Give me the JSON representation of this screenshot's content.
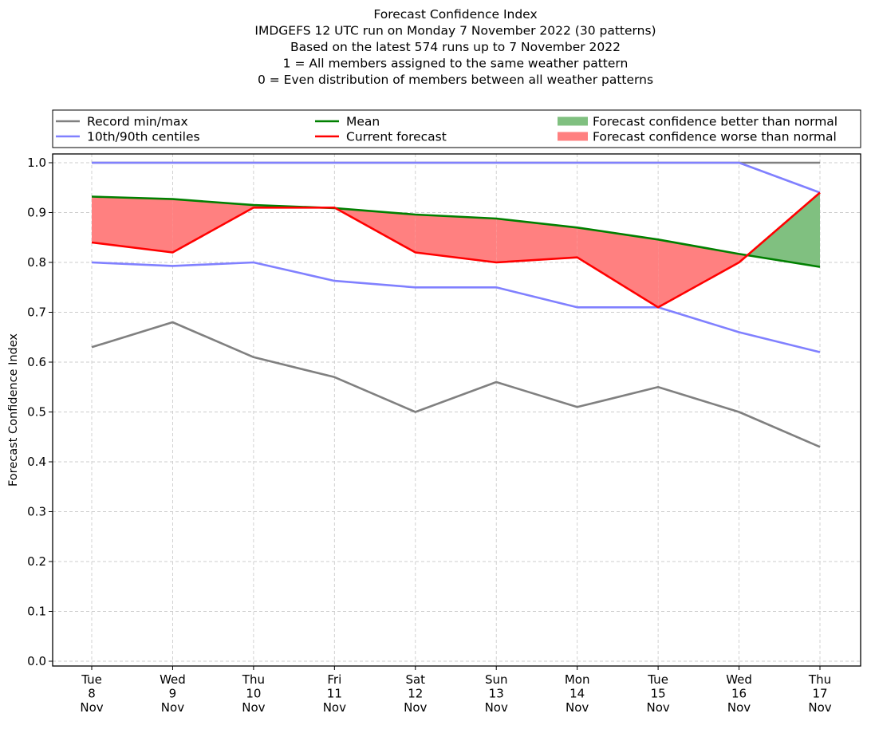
{
  "chart_data": {
    "type": "line",
    "title_lines": [
      "Forecast Confidence Index",
      "IMDGEFS 12 UTC run on Monday 7 November 2022 (30 patterns)",
      "Based on the latest 574 runs up to 7 November 2022",
      "1 = All members assigned to the same weather pattern",
      "0 = Even distribution of members between all weather patterns"
    ],
    "xlabel": "",
    "ylabel": "Forecast Confidence Index",
    "ylim": [
      0.0,
      1.0
    ],
    "yticks": [
      0.0,
      0.1,
      0.2,
      0.3,
      0.4,
      0.5,
      0.6,
      0.7,
      0.8,
      0.9,
      1.0
    ],
    "ytick_labels": [
      "0.0",
      "0.1",
      "0.2",
      "0.3",
      "0.4",
      "0.5",
      "0.6",
      "0.7",
      "0.8",
      "0.9",
      "1.0"
    ],
    "grid": true,
    "legend_position": "top (above plot, 3 columns)",
    "categories": [
      {
        "day": "Tue",
        "date": "8",
        "month": "Nov"
      },
      {
        "day": "Wed",
        "date": "9",
        "month": "Nov"
      },
      {
        "day": "Thu",
        "date": "10",
        "month": "Nov"
      },
      {
        "day": "Fri",
        "date": "11",
        "month": "Nov"
      },
      {
        "day": "Sat",
        "date": "12",
        "month": "Nov"
      },
      {
        "day": "Sun",
        "date": "13",
        "month": "Nov"
      },
      {
        "day": "Mon",
        "date": "14",
        "month": "Nov"
      },
      {
        "day": "Tue",
        "date": "15",
        "month": "Nov"
      },
      {
        "day": "Wed",
        "date": "16",
        "month": "Nov"
      },
      {
        "day": "Thu",
        "date": "17",
        "month": "Nov"
      }
    ],
    "series": [
      {
        "name": "Record max",
        "legend": "Record min/max",
        "color": "#808080",
        "values": [
          1.0,
          1.0,
          1.0,
          1.0,
          1.0,
          1.0,
          1.0,
          1.0,
          1.0,
          1.0
        ]
      },
      {
        "name": "Record min",
        "legend": "Record min/max",
        "color": "#808080",
        "values": [
          0.63,
          0.68,
          0.61,
          0.57,
          0.5,
          0.56,
          0.51,
          0.55,
          0.5,
          0.43
        ]
      },
      {
        "name": "90th centile",
        "legend": "10th/90th centiles",
        "color": "#8080ff",
        "values": [
          1.0,
          1.0,
          1.0,
          1.0,
          1.0,
          1.0,
          1.0,
          1.0,
          1.0,
          0.94
        ]
      },
      {
        "name": "10th centile",
        "legend": "10th/90th centiles",
        "color": "#8080ff",
        "values": [
          0.8,
          0.793,
          0.8,
          0.763,
          0.75,
          0.75,
          0.71,
          0.71,
          0.66,
          0.62
        ]
      },
      {
        "name": "Mean",
        "legend": "Mean",
        "color": "#008000",
        "values": [
          0.932,
          0.927,
          0.915,
          0.909,
          0.896,
          0.888,
          0.87,
          0.846,
          0.817,
          0.791
        ]
      },
      {
        "name": "Current forecast",
        "legend": "Current forecast",
        "color": "#ff0000",
        "values": [
          0.84,
          0.82,
          0.91,
          0.91,
          0.82,
          0.8,
          0.81,
          0.71,
          0.8,
          0.94
        ]
      }
    ],
    "fills": {
      "better": {
        "label": "Forecast confidence better than normal",
        "color": "#80c080"
      },
      "worse": {
        "label": "Forecast confidence worse than normal",
        "color": "#ff8080"
      }
    },
    "legend": [
      {
        "label": "Record min/max",
        "kind": "line",
        "color": "#808080"
      },
      {
        "label": "10th/90th centiles",
        "kind": "line",
        "color": "#8080ff"
      },
      {
        "label": "Mean",
        "kind": "line",
        "color": "#008000"
      },
      {
        "label": "Current forecast",
        "kind": "line",
        "color": "#ff0000"
      },
      {
        "label": "Forecast confidence better than normal",
        "kind": "patch",
        "color": "#80c080"
      },
      {
        "label": "Forecast confidence worse than normal",
        "kind": "patch",
        "color": "#ff8080"
      }
    ]
  }
}
